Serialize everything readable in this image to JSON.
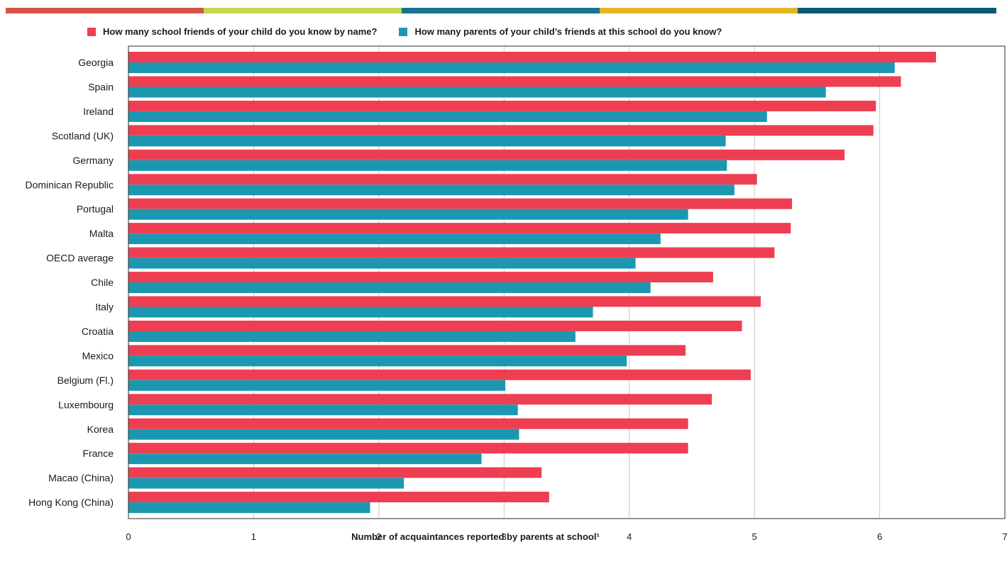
{
  "header": {
    "band_colors": [
      "#d65545",
      "#c8d54f",
      "#14758f",
      "#e5b522",
      "#0c5876"
    ]
  },
  "legend": {
    "series_a_label": "How many school friends of your child do you know by name?",
    "series_b_label": "How many parents of your child’s friends at this school do you know?",
    "series_a_color": "#ee3f52",
    "series_b_color": "#1b98b0"
  },
  "chart_data": {
    "type": "bar",
    "orientation": "horizontal",
    "categories": [
      "Georgia",
      "Spain",
      "Ireland",
      "Scotland (UK)",
      "Germany",
      "Dominican Republic",
      "Portugal",
      "Malta",
      "OECD average",
      "Chile",
      "Italy",
      "Croatia",
      "Mexico",
      "Belgium (Fl.)",
      "Luxembourg",
      "Korea",
      "France",
      "Macao (China)",
      "Hong Kong (China)"
    ],
    "series": [
      {
        "name": "How many school friends of your child do you know by name?",
        "color": "#ee3f52",
        "values": [
          6.45,
          6.17,
          5.97,
          5.95,
          5.72,
          5.02,
          5.3,
          5.29,
          5.16,
          4.67,
          5.05,
          4.9,
          4.45,
          4.97,
          4.66,
          4.47,
          4.47,
          3.3,
          3.36
        ]
      },
      {
        "name": "How many parents of your child’s friends at this school do you know?",
        "color": "#1b98b0",
        "values": [
          6.12,
          5.57,
          5.1,
          4.77,
          4.78,
          4.84,
          4.47,
          4.25,
          4.05,
          4.17,
          3.71,
          3.57,
          3.98,
          3.01,
          3.11,
          3.12,
          2.82,
          2.2,
          1.93
        ]
      }
    ],
    "xlabel": "Number of acquaintances reported by parents at school¹",
    "ylabel": "",
    "xlim": [
      0,
      7
    ],
    "xticks": [
      "0",
      "1",
      "2",
      "3",
      "4",
      "5",
      "6",
      "7"
    ],
    "grid": true,
    "legend_position": "top"
  }
}
